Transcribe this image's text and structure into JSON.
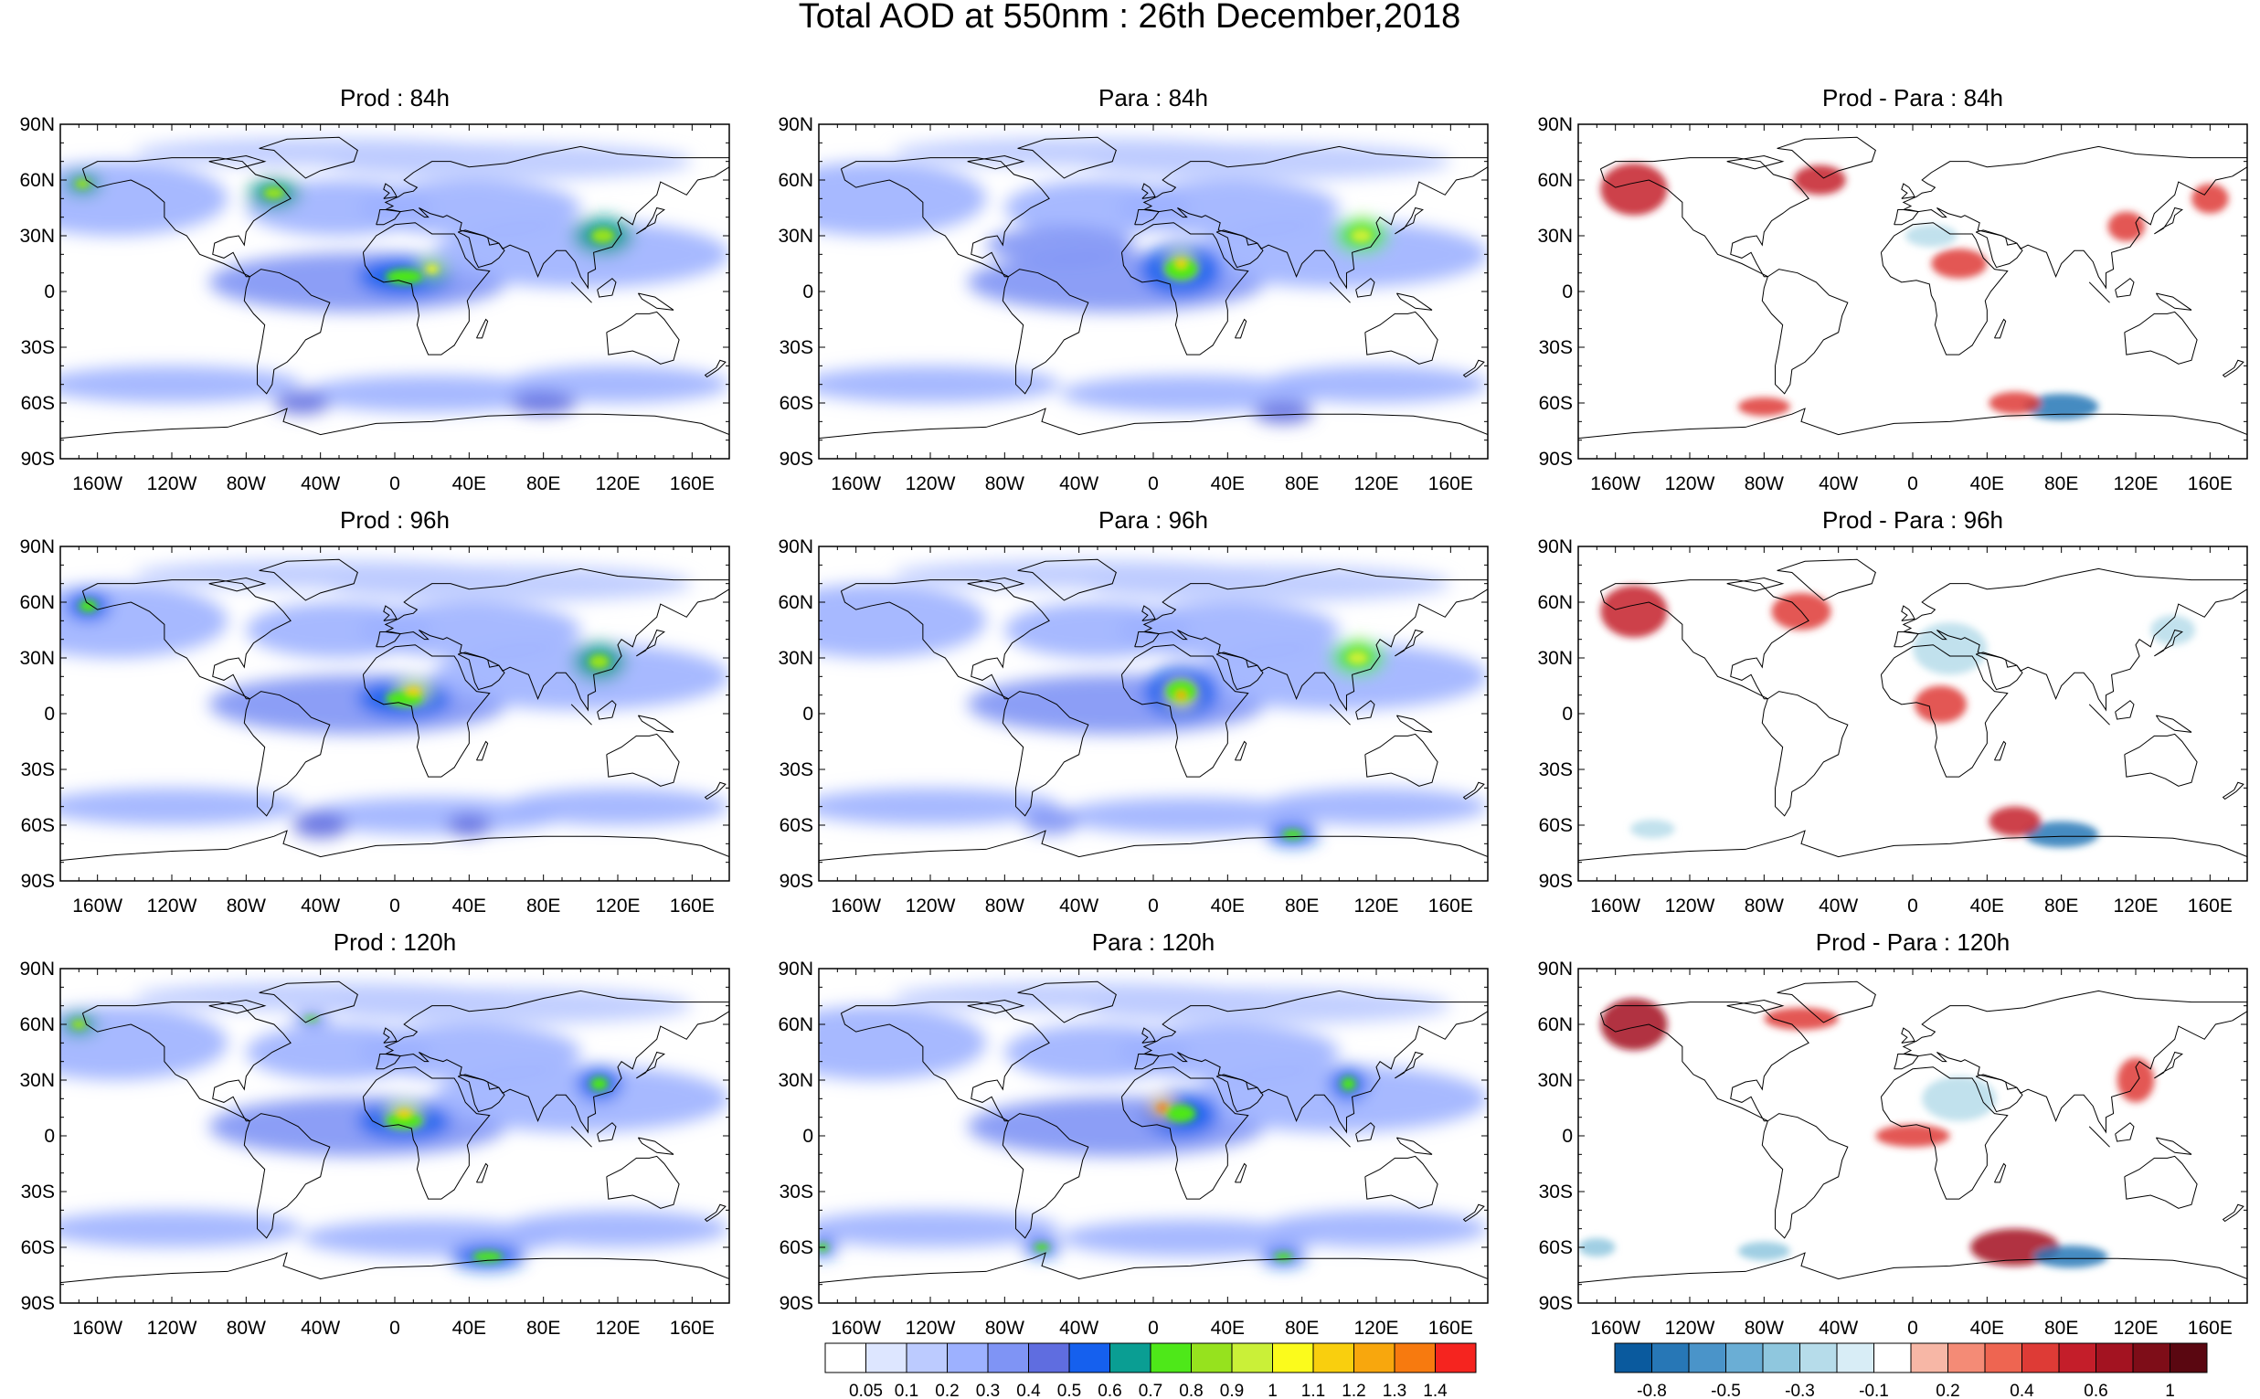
{
  "figure": {
    "title": "Total AOD at 550nm : 26th December,2018"
  },
  "panels": [
    {
      "title": "Prod : 84h",
      "kind": "aod"
    },
    {
      "title": "Para : 84h",
      "kind": "aod"
    },
    {
      "title": "Prod - Para : 84h",
      "kind": "diff"
    },
    {
      "title": "Prod : 96h",
      "kind": "aod"
    },
    {
      "title": "Para : 96h",
      "kind": "aod"
    },
    {
      "title": "Prod - Para : 96h",
      "kind": "diff"
    },
    {
      "title": "Prod : 120h",
      "kind": "aod"
    },
    {
      "title": "Para : 120h",
      "kind": "aod"
    },
    {
      "title": "Prod - Para : 120h",
      "kind": "diff"
    }
  ],
  "axes": {
    "lat_labels": [
      "90N",
      "60N",
      "30N",
      "0",
      "30S",
      "60S",
      "90S"
    ],
    "lon_labels": [
      "160W",
      "120W",
      "80W",
      "40W",
      "0",
      "40E",
      "80E",
      "120E",
      "160E"
    ],
    "lat_values": [
      90,
      60,
      30,
      0,
      -30,
      -60,
      -90
    ],
    "lon_values": [
      -160,
      -120,
      -80,
      -40,
      0,
      40,
      80,
      120,
      160
    ],
    "lon_range": [
      -180,
      180
    ],
    "lat_range": [
      -90,
      90
    ]
  },
  "colorbars": {
    "aod": {
      "colors": [
        "#ffffff",
        "#dde6ff",
        "#bccbff",
        "#9db1ff",
        "#7f94f5",
        "#5f6de0",
        "#1560ee",
        "#0a9e93",
        "#4ee819",
        "#96e21e",
        "#caf038",
        "#fbfb1c",
        "#f9cf0e",
        "#f8a70d",
        "#f77a0f",
        "#f5241f"
      ],
      "labels": [
        "0.05",
        "0.1",
        "0.2",
        "0.3",
        "0.4",
        "0.5",
        "0.6",
        "0.7",
        "0.8",
        "0.9",
        "1",
        "1.1",
        "1.2",
        "1.3",
        "1.4"
      ]
    },
    "diff": {
      "colors": [
        "#0a5a9e",
        "#2777b6",
        "#4a94c9",
        "#6aaed5",
        "#8fc7de",
        "#b6dcea",
        "#d8edf6",
        "#ffffff",
        "#f7b7a6",
        "#f48b76",
        "#ee6551",
        "#de3b36",
        "#c41e2a",
        "#a31321",
        "#7e0d18",
        "#5a0711"
      ],
      "labels": [
        "-0.8",
        "-0.5",
        "-0.3",
        "-0.1",
        "0.2",
        "0.4",
        "0.6",
        "1"
      ],
      "label_positions": [
        1,
        3,
        5,
        7,
        9,
        11,
        13,
        15
      ]
    }
  },
  "colors": {
    "land_outline": "#000000",
    "background": "#ffffff"
  }
}
